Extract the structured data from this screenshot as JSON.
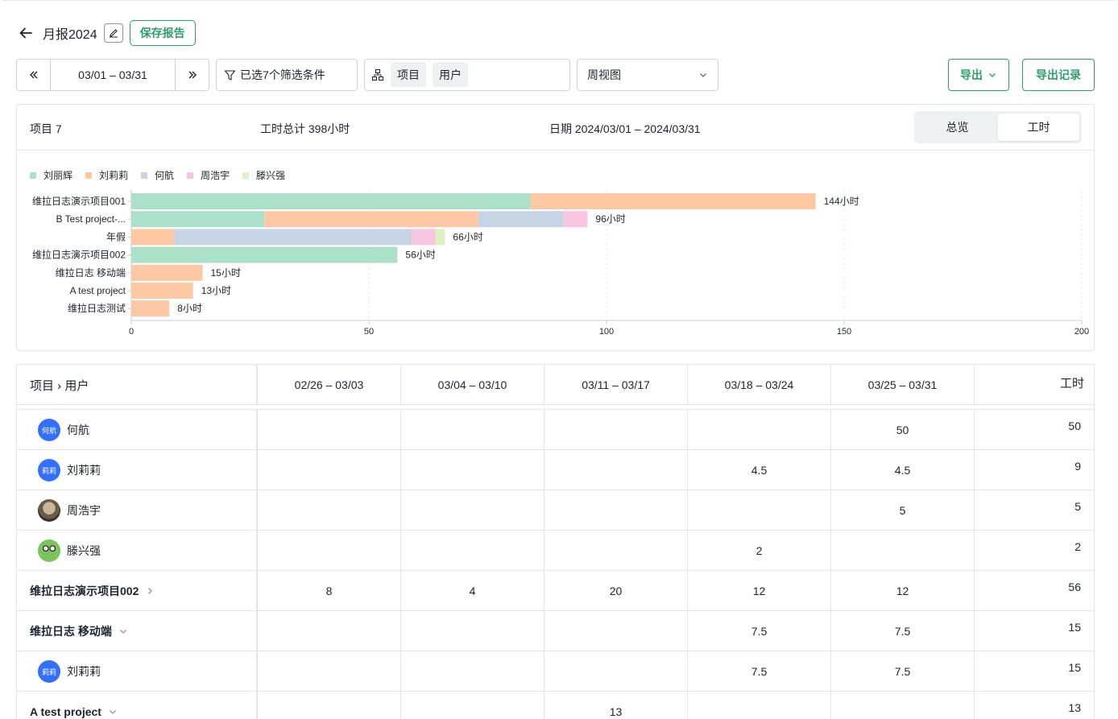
{
  "header": {
    "title": "月报2024",
    "save_label": "保存报告"
  },
  "toolbar": {
    "date_range": "03/01 – 03/31",
    "filter_label": "已选7个筛选条件",
    "group_chips": [
      "项目",
      "用户"
    ],
    "view_value": "周视图",
    "export_label": "导出",
    "export_log_label": "导出记录"
  },
  "summary": {
    "projects": "项目 7",
    "total_hours": "工时总计 398小时",
    "date": "日期 2024/03/01 – 2024/03/31",
    "tabs": [
      "总览",
      "工时"
    ],
    "active_tab": "工时"
  },
  "colors": {
    "accent": "#2e9e6b",
    "avatar_blue": "#3370ff"
  },
  "chart_data": {
    "type": "bar",
    "orientation": "horizontal",
    "stacked": true,
    "categories": [
      "维拉日志演示项目001",
      "B Test project-...",
      "年假",
      "维拉日志演示项目002",
      "维拉日志 移动端",
      "A test project",
      "维拉日志测试"
    ],
    "series": [
      {
        "name": "刘丽辉",
        "color": "#abe0c9",
        "values": [
          84,
          28,
          0,
          56,
          0,
          0,
          0
        ]
      },
      {
        "name": "刘莉莉",
        "color": "#fec8a4",
        "values": [
          60,
          45,
          9,
          0,
          15,
          13,
          8
        ]
      },
      {
        "name": "何航",
        "color": "#c7d4e6",
        "values": [
          0,
          18,
          50,
          0,
          0,
          0,
          0
        ]
      },
      {
        "name": "周浩宇",
        "color": "#f8c6e0",
        "values": [
          0,
          5,
          5,
          0,
          0,
          0,
          0
        ]
      },
      {
        "name": "滕兴强",
        "color": "#ddf1c3",
        "values": [
          0,
          0,
          2,
          0,
          0,
          0,
          0
        ]
      }
    ],
    "totals_labels": [
      "144小时",
      "96小时",
      "66小时",
      "56小时",
      "15小时",
      "13小时",
      "8小时"
    ],
    "totals": [
      144,
      96,
      66,
      56,
      15,
      13,
      8
    ],
    "xlim": [
      0,
      200
    ],
    "xticks": [
      0,
      50,
      100,
      150,
      200
    ],
    "legend_position": "top-left"
  },
  "table": {
    "headers": [
      "项目 › 用户",
      "02/26 – 03/03",
      "03/04 – 03/10",
      "03/11 – 03/17",
      "03/18 – 03/24",
      "03/25 – 03/31",
      "工时"
    ],
    "rows": [
      {
        "kind": "user",
        "name": "何航",
        "avatar_text": "何航",
        "avatar": "blue",
        "cells": [
          "",
          "",
          "",
          "",
          "50"
        ],
        "total": "50"
      },
      {
        "kind": "user",
        "name": "刘莉莉",
        "avatar_text": "莉莉",
        "avatar": "blue",
        "cells": [
          "",
          "",
          "",
          "4.5",
          "4.5"
        ],
        "total": "9"
      },
      {
        "kind": "user",
        "name": "周浩宇",
        "avatar_text": "",
        "avatar": "photo",
        "cells": [
          "",
          "",
          "",
          "",
          "5"
        ],
        "total": "5"
      },
      {
        "kind": "user",
        "name": "滕兴强",
        "avatar_text": "",
        "avatar": "frog",
        "cells": [
          "",
          "",
          "",
          "2",
          ""
        ],
        "total": "2"
      },
      {
        "kind": "project",
        "name": "维拉日志演示项目002",
        "expanded": false,
        "cells": [
          "8",
          "4",
          "20",
          "12",
          "12"
        ],
        "total": "56"
      },
      {
        "kind": "project",
        "name": "维拉日志 移动端",
        "expanded": true,
        "cells": [
          "",
          "",
          "",
          "7.5",
          "7.5"
        ],
        "total": "15"
      },
      {
        "kind": "user",
        "name": "刘莉莉",
        "avatar_text": "莉莉",
        "avatar": "blue",
        "cells": [
          "",
          "",
          "",
          "7.5",
          "7.5"
        ],
        "total": "15"
      },
      {
        "kind": "project",
        "name": "A test project",
        "expanded": true,
        "cells": [
          "",
          "",
          "13",
          "",
          ""
        ],
        "total": "13"
      }
    ]
  }
}
